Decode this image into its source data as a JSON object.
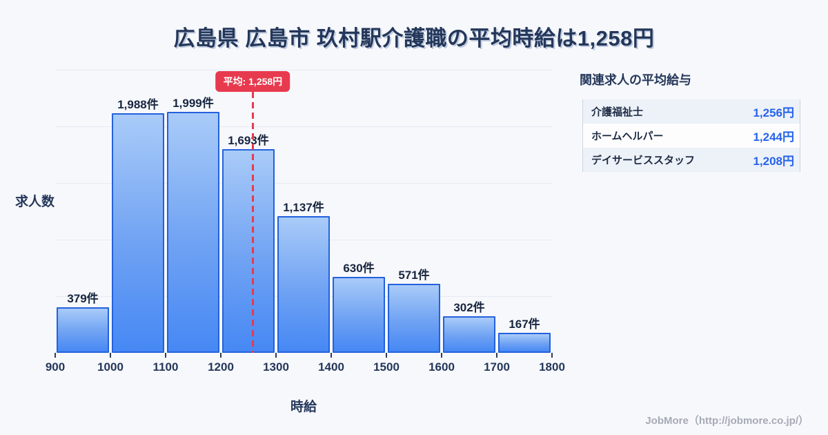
{
  "title": "広島県 広島市 玖村駅介護職の平均時給は1,258円",
  "chart_data": {
    "type": "bar",
    "bins": [
      900,
      1000,
      1100,
      1200,
      1300,
      1400,
      1500,
      1600,
      1700,
      1800
    ],
    "x_tick_labels": [
      "900",
      "1000",
      "1100",
      "1200",
      "1300",
      "1400",
      "1500",
      "1600",
      "1700",
      "1800"
    ],
    "values": [
      379,
      1988,
      1999,
      1693,
      1137,
      630,
      571,
      302,
      167
    ],
    "value_labels": [
      "379件",
      "1,988件",
      "1,999件",
      "1,693件",
      "1,137件",
      "630件",
      "571件",
      "302件",
      "167件"
    ],
    "unit_suffix": "件",
    "xlabel": "時給",
    "ylabel": "求人数",
    "xlim": [
      900,
      1800
    ],
    "ylim": [
      0,
      2350
    ],
    "grid": "horizontal",
    "mean": {
      "value": 1258,
      "label": "平均: 1,258円"
    }
  },
  "panel": {
    "title": "関連求人の平均給与",
    "rows": [
      {
        "label": "介護福祉士",
        "value": "1,256円"
      },
      {
        "label": "ホームヘルパー",
        "value": "1,244円"
      },
      {
        "label": "デイサービススタッフ",
        "value": "1,208円"
      }
    ]
  },
  "footer": {
    "credit": "JobMore（http://jobmore.co.jp/）"
  },
  "colors": {
    "background": "#f7f8fc",
    "navy_text": "#24375a",
    "bar_border": "#2361dd",
    "bar_gradient_top": "#a9cbf8",
    "bar_gradient_bottom": "#4688f4",
    "mean_red": "#e73a4e",
    "value_blue": "#2563eb",
    "gridline": "#e6eaf2"
  }
}
